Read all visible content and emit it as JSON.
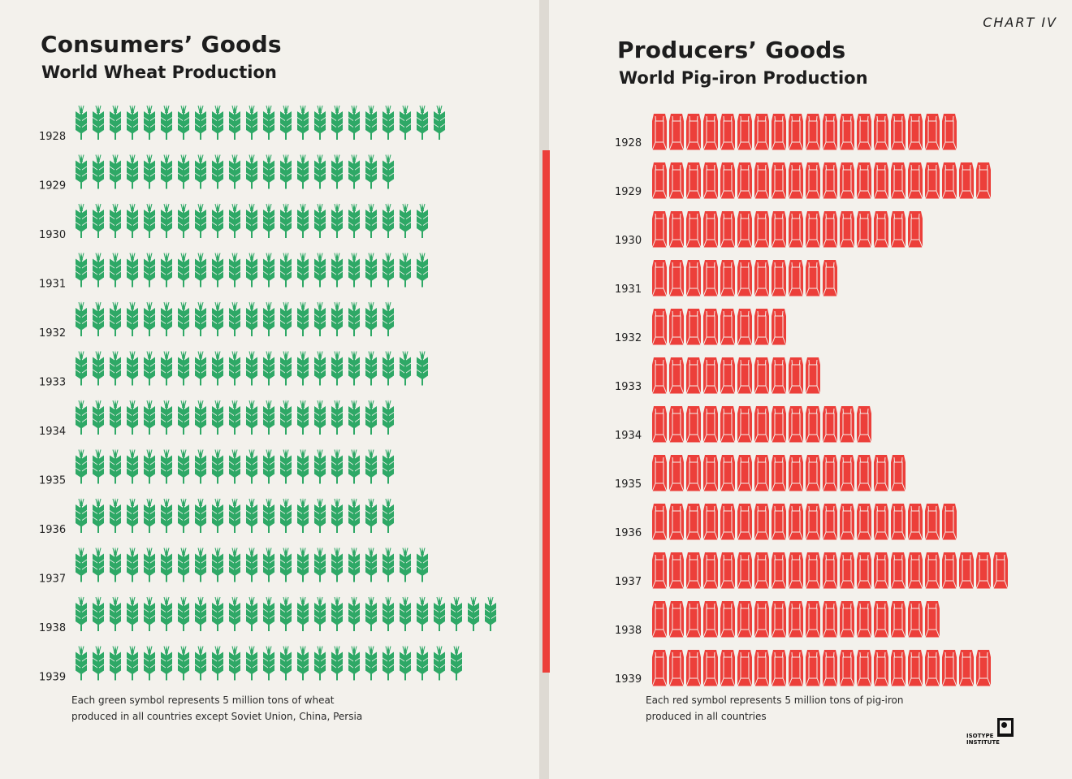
{
  "header": {
    "chart_label": "CHART IV"
  },
  "left": {
    "title": "Consumers’ Goods",
    "subtitle": "World Wheat Production",
    "note_line1": "Each green symbol represents 5 million tons of wheat",
    "note_line2": "produced in all countries except  Soviet Union, China, Persia"
  },
  "right": {
    "title": "Producers’ Goods",
    "subtitle": "World Pig-iron Production",
    "note_line1": "Each red symbol represents 5 million tons of  pig-iron",
    "note_line2": "produced in all countries"
  },
  "logo": {
    "line1": "ISOTYPE",
    "line2": "INSTITUTE",
    "icon": "isotype-figure-icon"
  },
  "colors": {
    "wheat": "#2ea866",
    "pig_iron": "#ec3f3a",
    "spine": "#ec3f3a"
  },
  "chart_data": [
    {
      "type": "bar",
      "title": "Consumers’ Goods",
      "subtitle": "World Wheat Production",
      "categories": [
        "1928",
        "1929",
        "1930",
        "1931",
        "1932",
        "1933",
        "1934",
        "1935",
        "1936",
        "1937",
        "1938",
        "1939"
      ],
      "series": [
        {
          "values": [
            22,
            19,
            21,
            21,
            19,
            21,
            19,
            19,
            19,
            21,
            25,
            23
          ]
        }
      ],
      "unit_per_symbol": 5,
      "unit": "million tons",
      "symbol": "wheat-ear-icon",
      "symbol_color": "#2ea866"
    },
    {
      "type": "bar",
      "title": "Producers’ Goods",
      "subtitle": "World Pig-iron Production",
      "categories": [
        "1928",
        "1929",
        "1930",
        "1931",
        "1932",
        "1933",
        "1934",
        "1935",
        "1936",
        "1937",
        "1938",
        "1939"
      ],
      "series": [
        {
          "values": [
            18,
            20,
            16,
            11,
            8,
            10,
            13,
            15,
            18,
            21,
            17,
            20
          ]
        }
      ],
      "unit_per_symbol": 5,
      "unit": "million tons",
      "symbol": "pig-iron-bar-icon",
      "symbol_color": "#ec3f3a"
    }
  ]
}
